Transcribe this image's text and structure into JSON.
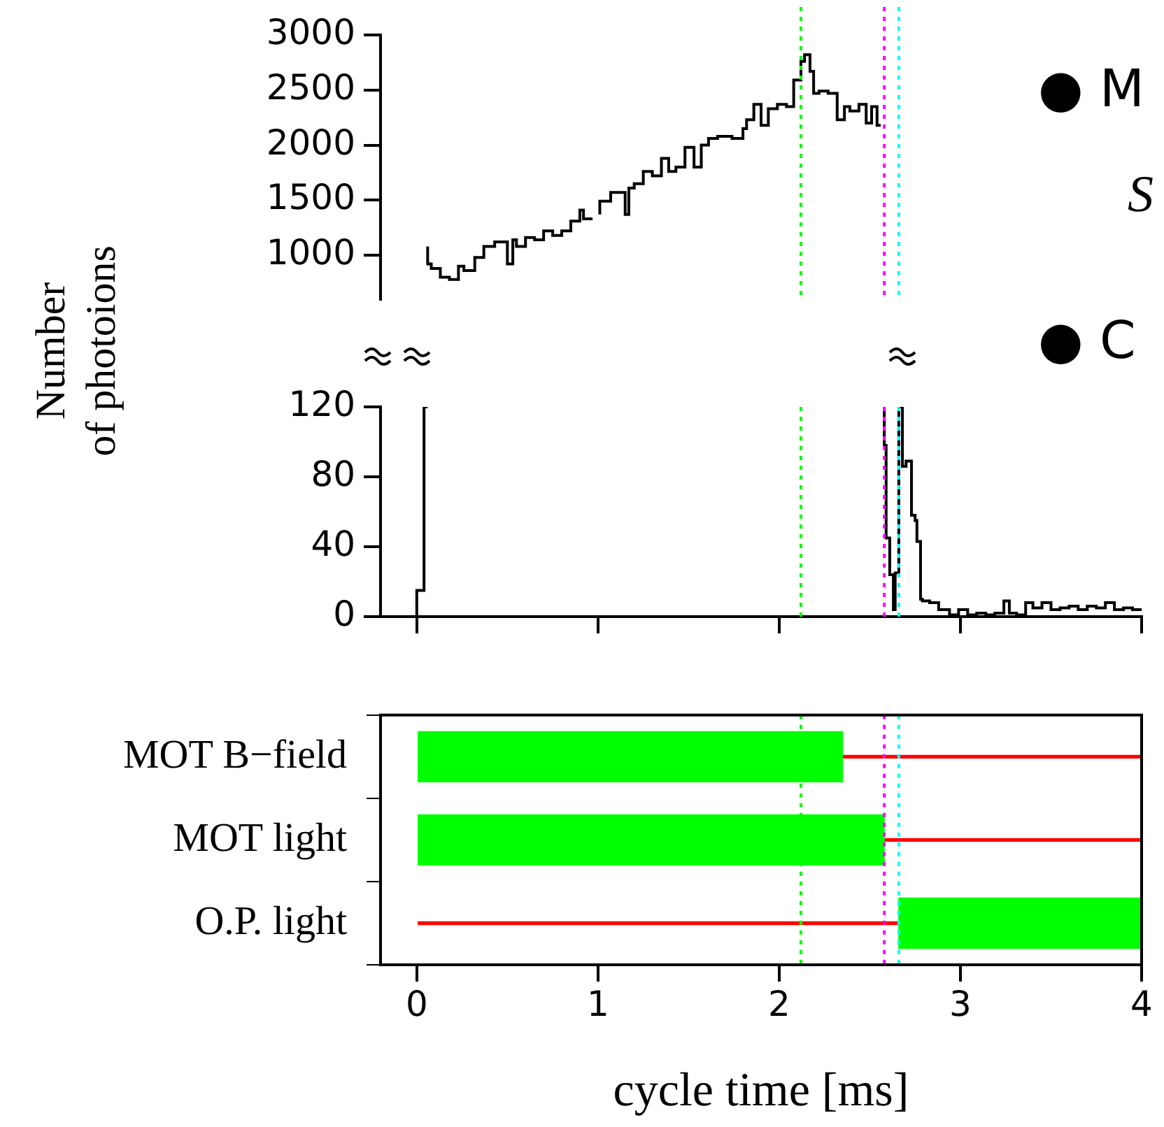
{
  "chart_data": [
    {
      "type": "step",
      "ylabel": "Number\nof photoions",
      "xlim": [
        -0.2,
        4
      ],
      "ylim": [
        600,
        3000
      ],
      "yticks": [
        1000,
        1500,
        2000,
        2500,
        3000
      ],
      "tick_labels": "y",
      "grid": false,
      "legend": false,
      "series": [
        {
          "color": "#000000",
          "x": [
            0.06,
            0.08,
            0.13,
            0.18,
            0.23,
            0.26,
            0.32,
            0.37,
            0.43,
            0.5,
            0.53,
            0.55,
            0.6,
            0.65,
            0.7,
            0.75,
            0.8,
            0.85,
            0.9,
            0.92,
            0.97,
            0.99,
            1.01,
            1.07,
            1.15,
            1.17,
            1.2,
            1.25,
            1.3,
            1.35,
            1.39,
            1.43,
            1.48,
            1.53,
            1.57,
            1.61,
            1.66,
            1.74,
            1.8,
            1.82,
            1.86,
            1.9,
            1.94,
            1.99,
            2.04,
            2.08,
            2.12,
            2.14,
            2.17,
            2.19,
            2.22,
            2.27,
            2.32,
            2.36,
            2.39,
            2.44,
            2.48,
            2.51,
            2.54,
            2.56
          ],
          "values": [
            1080,
            920,
            880,
            800,
            780,
            900,
            860,
            980,
            1080,
            1120,
            920,
            1140,
            1080,
            1160,
            1140,
            1220,
            1180,
            1220,
            1310,
            1410,
            1330,
            null,
            1370,
            1490,
            1570,
            1370,
            1610,
            1650,
            1760,
            1720,
            1880,
            1760,
            1800,
            1980,
            1800,
            2000,
            2060,
            2080,
            2060,
            2150,
            2230,
            2370,
            2180,
            2330,
            2370,
            2350,
            2590,
            2760,
            2820,
            2670,
            2470,
            2490,
            2470,
            2230,
            2350,
            2310,
            2370,
            2200,
            2350,
            2180
          ]
        }
      ],
      "ref_lines": [
        {
          "axis": "x",
          "value": 2.12,
          "color": "#00ff00",
          "line_style": "dotted"
        },
        {
          "axis": "x",
          "value": 2.58,
          "color": "#ff00ff",
          "line_style": "dotted"
        },
        {
          "axis": "x",
          "value": 2.66,
          "color": "#00ffff",
          "line_style": "dotted"
        }
      ],
      "annotations": [
        "● M",
        "S",
        "● C"
      ]
    },
    {
      "type": "step",
      "xlim": [
        -0.2,
        4
      ],
      "xticks": [
        0,
        1,
        2,
        3,
        4
      ],
      "ylim": [
        0,
        120
      ],
      "yticks": [
        0,
        40,
        80,
        120
      ],
      "tick_labels": "y",
      "grid": false,
      "legend": false,
      "series": [
        {
          "color": "#000000",
          "x": [
            0,
            0.04,
            0.06,
            0.07,
            2.58,
            2.59,
            2.61,
            2.63,
            2.64,
            2.66,
            2.68,
            2.7,
            2.73,
            2.75,
            2.76,
            2.78,
            2.79,
            2.83,
            2.88,
            2.94,
            2.99,
            3.04,
            3.09,
            3.14,
            3.19,
            3.24,
            3.27,
            3.31,
            3.36,
            3.4,
            3.45,
            3.5,
            3.55,
            3.6,
            3.65,
            3.7,
            3.75,
            3.8,
            3.85,
            3.9,
            3.95,
            4
          ],
          "values": [
            0,
            15,
            120,
            null,
            120,
            98,
            45,
            24,
            4,
            25,
            120,
            86,
            89,
            58,
            55,
            43,
            10,
            9,
            8,
            4,
            1,
            4,
            1,
            2,
            1,
            2,
            9,
            2,
            1,
            8,
            5,
            8,
            4,
            5,
            6,
            4,
            6,
            5,
            8,
            4,
            5,
            4
          ]
        }
      ],
      "ref_lines": [
        {
          "axis": "x",
          "value": 2.12,
          "color": "#00ff00",
          "line_style": "dotted"
        },
        {
          "axis": "x",
          "value": 2.58,
          "color": "#ff00ff",
          "line_style": "dotted"
        },
        {
          "axis": "x",
          "value": 2.66,
          "color": "#00ffff",
          "line_style": "dotted"
        }
      ]
    },
    {
      "type": "bar",
      "orientation": "horizontal",
      "xlabel": "cycle time [ms]",
      "xlim": [
        -0.2,
        4
      ],
      "xticks": [
        0,
        1,
        2,
        3,
        4
      ],
      "grid": false,
      "legend": false,
      "categories": [
        "MOT B−field",
        "MOT light",
        "O.P. light"
      ],
      "series": [
        {
          "color": "#00ff00",
          "base": [
            0,
            0,
            2.66
          ],
          "values": [
            2.35,
            2.58,
            1.34
          ]
        },
        {
          "color": "#ff0000",
          "base": [
            2.35,
            2.58,
            0
          ],
          "values": [
            1.65,
            1.42,
            2.66
          ]
        }
      ],
      "ref_lines": [
        {
          "axis": "x",
          "value": 2.12,
          "color": "#00ff00",
          "line_style": "dotted"
        },
        {
          "axis": "x",
          "value": 2.58,
          "color": "#ff00ff",
          "line_style": "dotted"
        },
        {
          "axis": "x",
          "value": 2.66,
          "color": "#00ffff",
          "line_style": "dotted"
        }
      ]
    }
  ]
}
